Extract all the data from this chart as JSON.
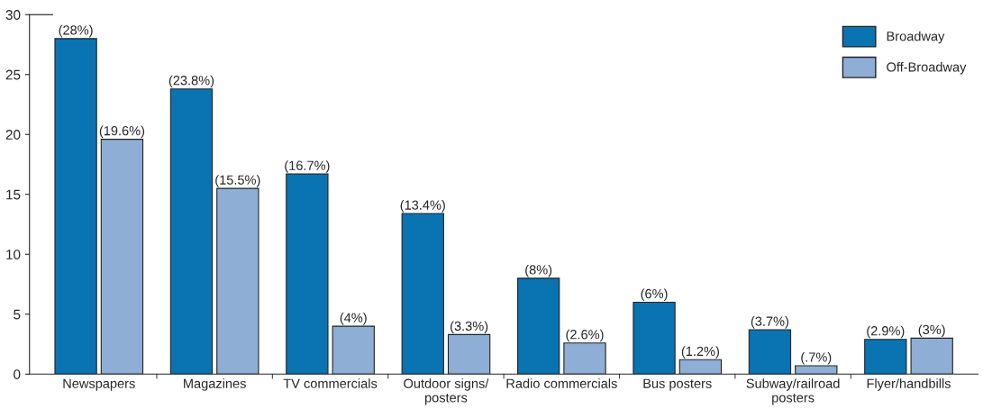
{
  "chart_data": {
    "type": "bar",
    "categories": [
      "Newspapers",
      "Magazines",
      "TV commercials",
      "Outdoor signs/\nposters",
      "Radio commercials",
      "Bus posters",
      "Subway/railroad\nposters",
      "Flyer/handbills"
    ],
    "series": [
      {
        "name": "Broadway",
        "color": "#0a73b2",
        "values": [
          28,
          23.8,
          16.7,
          13.4,
          8,
          6,
          3.7,
          2.9
        ],
        "value_labels": [
          "(28%)",
          "(23.8%)",
          "(16.7%)",
          "(13.4%)",
          "(8%)",
          "(6%)",
          "(3.7%)",
          "(2.9%)"
        ]
      },
      {
        "name": "Off-Broadway",
        "color": "#8eaed6",
        "values": [
          19.6,
          15.5,
          4,
          3.3,
          2.6,
          1.2,
          0.7,
          3
        ],
        "value_labels": [
          "(19.6%)",
          "(15.5%)",
          "(4%)",
          "(3.3%)",
          "(2.6%)",
          "(1.2%)",
          "(.7%)",
          "(3%)"
        ]
      }
    ],
    "ylim": [
      0,
      30
    ],
    "yticks": [
      0,
      5,
      10,
      15,
      20,
      25,
      30
    ],
    "grid": false,
    "legend": "top right"
  }
}
